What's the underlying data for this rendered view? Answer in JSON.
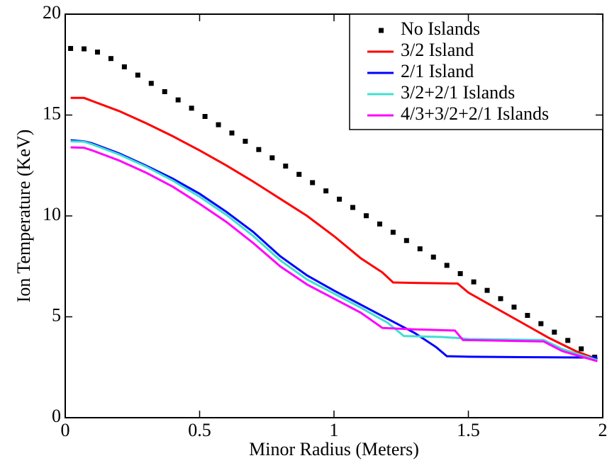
{
  "chart_data": {
    "type": "line",
    "xlabel": "Minor Radius (Meters)",
    "ylabel": "Ion Temperature (KeV)",
    "xlim": [
      0,
      2
    ],
    "xticks": [
      0,
      0.5,
      1,
      1.5,
      2
    ],
    "ylim": [
      0,
      20
    ],
    "yticks": [
      0,
      5,
      10,
      15,
      20
    ],
    "legend": "upper right",
    "series": [
      {
        "name": "No Islands",
        "color": "#000000",
        "marker": "square",
        "x": [
          0.02,
          0.07,
          0.12,
          0.17,
          0.22,
          0.27,
          0.32,
          0.37,
          0.42,
          0.47,
          0.52,
          0.57,
          0.62,
          0.67,
          0.72,
          0.77,
          0.82,
          0.87,
          0.92,
          0.97,
          1.02,
          1.07,
          1.12,
          1.17,
          1.22,
          1.27,
          1.32,
          1.37,
          1.42,
          1.47,
          1.52,
          1.57,
          1.62,
          1.67,
          1.72,
          1.77,
          1.82,
          1.87,
          1.92,
          1.97
        ],
        "values": [
          18.3,
          18.28,
          18.12,
          17.8,
          17.39,
          16.98,
          16.57,
          16.16,
          15.75,
          15.34,
          14.93,
          14.52,
          14.11,
          13.7,
          13.29,
          12.88,
          12.47,
          12.06,
          11.65,
          11.24,
          10.83,
          10.42,
          10.01,
          9.6,
          9.19,
          8.78,
          8.37,
          7.96,
          7.55,
          7.14,
          6.73,
          6.31,
          5.9,
          5.48,
          5.07,
          4.66,
          4.24,
          3.83,
          3.41,
          3.0
        ]
      },
      {
        "name": "3/2 Island",
        "color": "#ff0000",
        "x": [
          0.02,
          0.07,
          0.1,
          0.2,
          0.3,
          0.4,
          0.5,
          0.6,
          0.7,
          0.8,
          0.9,
          1.0,
          1.1,
          1.18,
          1.22,
          1.3,
          1.46,
          1.5,
          1.6,
          1.7,
          1.8,
          1.9,
          1.98
        ],
        "values": [
          15.85,
          15.85,
          15.7,
          15.2,
          14.6,
          13.95,
          13.25,
          12.5,
          11.7,
          10.85,
          10.0,
          9.0,
          7.9,
          7.2,
          6.7,
          6.68,
          6.65,
          6.2,
          5.45,
          4.7,
          3.95,
          3.3,
          2.9
        ]
      },
      {
        "name": "2/1 Island",
        "color": "#0000ff",
        "x": [
          0.02,
          0.07,
          0.1,
          0.2,
          0.3,
          0.4,
          0.5,
          0.6,
          0.7,
          0.8,
          0.9,
          1.0,
          1.1,
          1.2,
          1.3,
          1.38,
          1.42,
          1.5,
          1.7,
          1.98
        ],
        "values": [
          13.75,
          13.7,
          13.6,
          13.1,
          12.5,
          11.85,
          11.1,
          10.2,
          9.2,
          8.0,
          7.05,
          6.3,
          5.6,
          4.9,
          4.2,
          3.5,
          3.05,
          3.02,
          3.0,
          2.98
        ]
      },
      {
        "name": "3/2+2/1 Islands",
        "color": "#40e0d0",
        "x": [
          0.02,
          0.07,
          0.1,
          0.2,
          0.3,
          0.4,
          0.5,
          0.6,
          0.7,
          0.8,
          0.9,
          1.0,
          1.1,
          1.2,
          1.26,
          1.4,
          1.46,
          1.5,
          1.78,
          1.85,
          1.98
        ],
        "values": [
          13.7,
          13.68,
          13.55,
          13.05,
          12.45,
          11.75,
          10.95,
          10.05,
          9.0,
          7.8,
          6.85,
          6.15,
          5.45,
          4.7,
          4.05,
          4.0,
          3.95,
          3.9,
          3.85,
          3.4,
          2.85
        ]
      },
      {
        "name": "4/3+3/2+2/1 Islands",
        "color": "#ff00ff",
        "x": [
          0.02,
          0.07,
          0.1,
          0.2,
          0.3,
          0.4,
          0.5,
          0.6,
          0.7,
          0.8,
          0.9,
          1.0,
          1.1,
          1.18,
          1.3,
          1.45,
          1.48,
          1.78,
          1.85,
          1.98
        ],
        "values": [
          13.4,
          13.38,
          13.25,
          12.75,
          12.15,
          11.45,
          10.6,
          9.7,
          8.65,
          7.5,
          6.6,
          5.9,
          5.2,
          4.45,
          4.38,
          4.32,
          3.85,
          3.78,
          3.3,
          2.8
        ]
      }
    ]
  }
}
